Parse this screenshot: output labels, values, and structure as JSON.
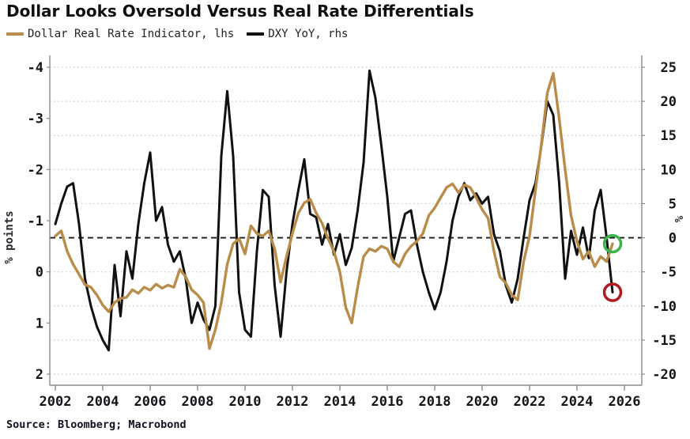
{
  "title": "Dollar Looks Oversold Versus Real Rate Differentials",
  "source": "Source: Bloomberg; Macrobond",
  "legend": [
    {
      "label": "Dollar Real Rate Indicator, lhs",
      "color": "#b98c4a"
    },
    {
      "label": "DXY YoY, rhs",
      "color": "#111111"
    }
  ],
  "colors": {
    "gold_line": "#b98c4a",
    "black_line": "#111111",
    "green_circle": "#3cb44b",
    "red_circle": "#b11a20",
    "gridline": "#c3c3c3",
    "zero_line": "#1a1a1a",
    "axis": "#8a8a8a",
    "background": "#ffffff"
  },
  "chart_data": {
    "type": "line",
    "title": "Dollar Looks Oversold Versus Real Rate Differentials",
    "grid": "dotted horizontal gridlines every 5 right-axis units",
    "legend_position": "top-left",
    "left_axis": {
      "label": "% points",
      "ticks": [
        -4,
        -3,
        -2,
        -1,
        0,
        1,
        2
      ],
      "range": [
        -4,
        2
      ],
      "inverted": true
    },
    "right_axis": {
      "label": "%",
      "ticks": [
        25,
        20,
        15,
        10,
        5,
        0,
        -5,
        -10,
        -15,
        -20
      ],
      "range": [
        -20,
        25
      ]
    },
    "x_axis": {
      "ticks": [
        2002,
        2004,
        2006,
        2008,
        2010,
        2012,
        2014,
        2016,
        2018,
        2020,
        2022,
        2024,
        2026
      ],
      "range": [
        2001.77,
        2026.67
      ]
    },
    "zero_reference_line": {
      "axis": "right",
      "value": 0,
      "style": "dashed"
    },
    "x": [
      2002,
      2002.25,
      2002.5,
      2002.75,
      2003,
      2003.25,
      2003.5,
      2003.75,
      2004,
      2004.25,
      2004.5,
      2004.75,
      2005,
      2005.25,
      2005.5,
      2005.75,
      2006,
      2006.25,
      2006.5,
      2006.75,
      2007,
      2007.25,
      2007.5,
      2007.75,
      2008,
      2008.25,
      2008.5,
      2008.75,
      2009,
      2009.25,
      2009.5,
      2009.75,
      2010,
      2010.25,
      2010.5,
      2010.75,
      2011,
      2011.25,
      2011.5,
      2011.75,
      2012,
      2012.25,
      2012.5,
      2012.75,
      2013,
      2013.25,
      2013.5,
      2013.75,
      2014,
      2014.25,
      2014.5,
      2014.75,
      2015,
      2015.25,
      2015.5,
      2015.75,
      2016,
      2016.25,
      2016.5,
      2016.75,
      2017,
      2017.25,
      2017.5,
      2017.75,
      2018,
      2018.25,
      2018.5,
      2018.75,
      2019,
      2019.25,
      2019.5,
      2019.75,
      2020,
      2020.25,
      2020.5,
      2020.75,
      2021,
      2021.25,
      2021.5,
      2021.75,
      2022,
      2022.25,
      2022.5,
      2022.75,
      2023,
      2023.25,
      2023.5,
      2023.75,
      2024,
      2024.25,
      2024.5,
      2024.75,
      2025,
      2025.25,
      2025.5
    ],
    "series": [
      {
        "name": "Dollar Real Rate Indicator, lhs",
        "axis": "left",
        "color": "#b98c4a",
        "values": [
          -0.7,
          -0.8,
          -0.4,
          -0.15,
          0.05,
          0.25,
          0.3,
          0.45,
          0.65,
          0.78,
          0.6,
          0.52,
          0.5,
          0.35,
          0.42,
          0.3,
          0.36,
          0.24,
          0.32,
          0.26,
          0.3,
          -0.05,
          0.1,
          0.35,
          0.45,
          0.6,
          1.5,
          1.13,
          0.6,
          -0.15,
          -0.55,
          -0.65,
          -0.35,
          -0.9,
          -0.75,
          -0.7,
          -0.8,
          -0.45,
          0.2,
          -0.3,
          -0.75,
          -1.15,
          -1.35,
          -1.42,
          -1.15,
          -0.95,
          -0.65,
          -0.4,
          0.0,
          0.7,
          1.0,
          0.3,
          -0.3,
          -0.45,
          -0.4,
          -0.5,
          -0.45,
          -0.2,
          -0.1,
          -0.35,
          -0.5,
          -0.6,
          -0.75,
          -1.1,
          -1.25,
          -1.45,
          -1.65,
          -1.72,
          -1.55,
          -1.7,
          -1.65,
          -1.45,
          -1.22,
          -1.05,
          -0.4,
          0.1,
          0.22,
          0.45,
          0.55,
          -0.2,
          -0.7,
          -1.6,
          -2.5,
          -3.5,
          -3.88,
          -3.0,
          -2.0,
          -1.1,
          -0.6,
          -0.25,
          -0.4,
          -0.1,
          -0.3,
          -0.2,
          -0.55
        ]
      },
      {
        "name": "DXY YoY, rhs",
        "axis": "right",
        "color": "#111111",
        "values": [
          2,
          5,
          7.5,
          8,
          2,
          -6,
          -10,
          -13,
          -15,
          -16.5,
          -4,
          -11.5,
          -2,
          -6,
          2,
          8,
          12.5,
          2.5,
          4.5,
          -1,
          -3.5,
          -2,
          -6,
          -12.5,
          -9.5,
          -12,
          -13.5,
          -10,
          12,
          21.5,
          12,
          -8,
          -13.5,
          -14.5,
          -2,
          7,
          6,
          -7,
          -14.5,
          -5,
          2,
          7,
          11.5,
          3.5,
          3,
          -1,
          2,
          -2.5,
          0.5,
          -4,
          -1.5,
          4,
          11,
          24.5,
          20.5,
          13.5,
          6,
          -3.5,
          0,
          3.5,
          4,
          -1,
          -5,
          -8,
          -10.5,
          -8,
          -3.5,
          2.5,
          6,
          8,
          5.5,
          6.5,
          5,
          6,
          0.5,
          -2,
          -7,
          -9.5,
          -6,
          0,
          5.5,
          8,
          13.5,
          20,
          18,
          8,
          -6,
          1,
          -2.5,
          1.5,
          -3,
          4,
          7,
          0,
          -8
        ]
      }
    ],
    "annotations": [
      {
        "shape": "circle",
        "color": "#3cb44b",
        "axis": "left",
        "x": 2025.5,
        "value": -0.55
      },
      {
        "shape": "circle",
        "color": "#b11a20",
        "axis": "right",
        "x": 2025.5,
        "value": -8
      }
    ]
  }
}
